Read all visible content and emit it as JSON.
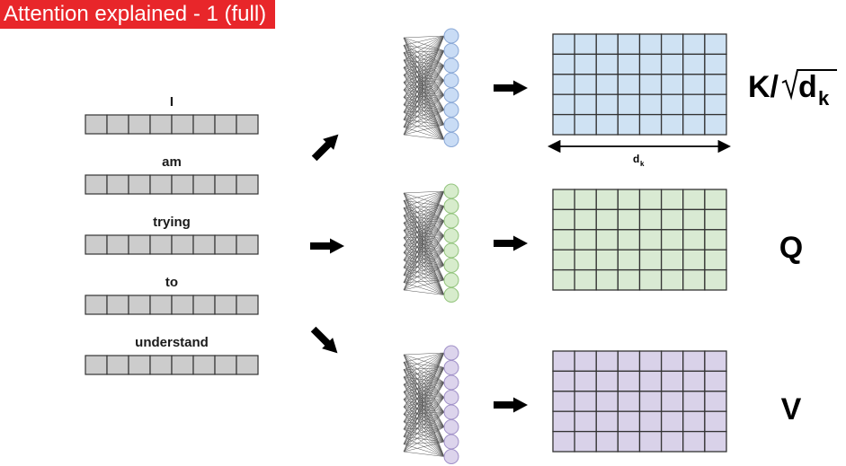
{
  "title": "Attention explained - 1 (full)",
  "words": [
    "I",
    "am",
    "trying",
    "to",
    "understand"
  ],
  "embedding_cells": 8,
  "matrix": {
    "rows": 5,
    "cols": 8
  },
  "dimension_label": {
    "base": "d",
    "sub": "k"
  },
  "branches": [
    {
      "label_main": "K/",
      "label_rest": "d",
      "label_sub": "k",
      "color": "#cfe2f3",
      "node_fill": "#c9dcf5",
      "node_stroke": "#8aa8d6"
    },
    {
      "label_main": "Q",
      "label_rest": "",
      "label_sub": "",
      "color": "#d9ead3",
      "node_fill": "#d7eccc",
      "node_stroke": "#93c47d"
    },
    {
      "label_main": "V",
      "label_rest": "",
      "label_sub": "",
      "color": "#d9d2e9",
      "node_fill": "#dcd4ec",
      "node_stroke": "#a090c8"
    }
  ],
  "colors": {
    "banner": "#e8262a",
    "cell": "#cccccc",
    "border": "#333333"
  }
}
